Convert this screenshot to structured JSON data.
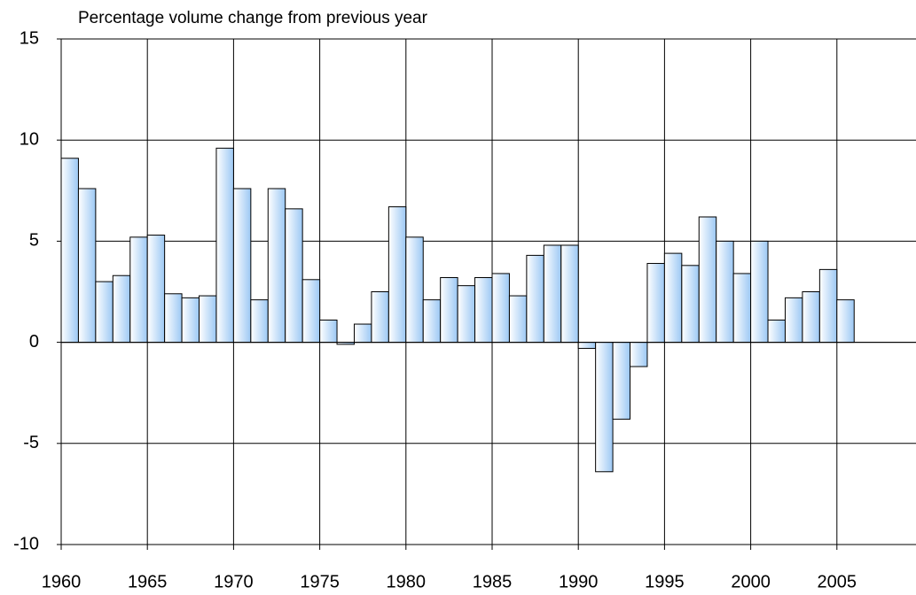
{
  "chart_data": {
    "type": "bar",
    "title": "Percentage volume change from previous year",
    "x": [
      1960,
      1961,
      1962,
      1963,
      1964,
      1965,
      1966,
      1967,
      1968,
      1969,
      1970,
      1971,
      1972,
      1973,
      1974,
      1975,
      1976,
      1977,
      1978,
      1979,
      1980,
      1981,
      1982,
      1983,
      1984,
      1985,
      1986,
      1987,
      1988,
      1989,
      1990,
      1991,
      1992,
      1993,
      1994,
      1995,
      1996,
      1997,
      1998,
      1999,
      2000,
      2001,
      2002,
      2003,
      2004,
      2005
    ],
    "values": [
      9.1,
      7.6,
      3.0,
      3.3,
      5.2,
      5.3,
      2.4,
      2.2,
      2.3,
      9.6,
      7.6,
      2.1,
      7.6,
      6.6,
      3.1,
      1.1,
      -0.1,
      0.9,
      2.5,
      6.7,
      5.2,
      2.1,
      3.2,
      2.8,
      3.2,
      3.4,
      2.3,
      4.3,
      4.8,
      4.8,
      -0.3,
      -6.4,
      -3.8,
      -1.2,
      3.9,
      4.4,
      3.8,
      6.2,
      5.0,
      3.4,
      5.0,
      1.1,
      2.2,
      2.5,
      3.6,
      2.1
    ],
    "color": "#9cc8f4",
    "xlim": [
      1960,
      2010
    ],
    "xticks": [
      1960,
      1965,
      1970,
      1975,
      1980,
      1985,
      1990,
      1995,
      2000,
      2005
    ],
    "ylim": [
      -10,
      15
    ],
    "yticks": [
      -10,
      -5,
      0,
      5,
      10,
      15
    ],
    "grid": true
  }
}
